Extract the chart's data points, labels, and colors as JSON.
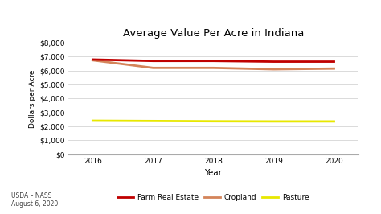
{
  "title": "Average Value Per Acre in Indiana",
  "xlabel": "Year",
  "ylabel": "Dollars per Acre",
  "years": [
    2016,
    2017,
    2018,
    2019,
    2020
  ],
  "farm_real_estate": [
    6800,
    6700,
    6700,
    6650,
    6650
  ],
  "cropland": [
    6750,
    6200,
    6200,
    6100,
    6150
  ],
  "pasture": [
    2400,
    2380,
    2360,
    2350,
    2350
  ],
  "farm_re_color": "#C00000",
  "cropland_color": "#D4845A",
  "pasture_color": "#E8E800",
  "ylim": [
    0,
    8000
  ],
  "yticks": [
    0,
    1000,
    2000,
    3000,
    4000,
    5000,
    6000,
    7000,
    8000
  ],
  "bg_color": "#FFFFFF",
  "grid_color": "#CCCCCC",
  "annotation": "USDA – NASS\nAugust 6, 2020",
  "legend_labels": [
    "Farm Real Estate",
    "Cropland",
    "Pasture"
  ],
  "linewidth": 2.0
}
